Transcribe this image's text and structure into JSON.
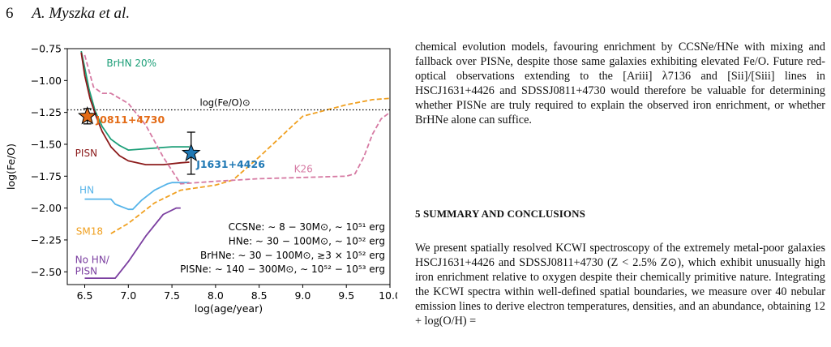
{
  "header": {
    "page_number": "6",
    "authors": "A. Myszka et al."
  },
  "figure": {
    "chart_data": {
      "type": "line",
      "xlabel": "log(age/year)",
      "ylabel": "log(Fe/O)",
      "xlim": [
        6.3,
        10.0
      ],
      "ylim": [
        -2.6,
        -0.75
      ],
      "xticks": [
        6.5,
        7.0,
        7.5,
        8.0,
        8.5,
        9.0,
        9.5,
        10.0
      ],
      "xtick_labels": [
        "6.5",
        "7.0",
        "7.5",
        "8.0",
        "8.5",
        "9.0",
        "9.5",
        "10.0"
      ],
      "yticks": [
        -0.75,
        -1.0,
        -1.25,
        -1.5,
        -1.75,
        -2.0,
        -2.25,
        -2.5
      ],
      "ytick_labels": [
        "−0.75",
        "−1.00",
        "−1.25",
        "−1.50",
        "−1.75",
        "−2.00",
        "−2.25",
        "−2.50"
      ],
      "grid": false,
      "reference_line": {
        "label": "log(Fe/O)⊙",
        "y": -1.23,
        "style": "dotted",
        "color": "#000000"
      },
      "series": [
        {
          "name": "BrHN 20%",
          "color": "#1b9e77",
          "style": "solid",
          "x": [
            6.46,
            6.5,
            6.55,
            6.62,
            6.7,
            6.8,
            6.9,
            7.0,
            7.2,
            7.4,
            7.5,
            7.7
          ],
          "y": [
            -0.77,
            -0.9,
            -1.07,
            -1.24,
            -1.36,
            -1.46,
            -1.51,
            -1.545,
            -1.535,
            -1.525,
            -1.52,
            -1.52
          ]
        },
        {
          "name": "PISN",
          "color": "#8b1a1a",
          "style": "solid",
          "x": [
            6.46,
            6.5,
            6.56,
            6.63,
            6.7,
            6.8,
            6.9,
            7.0,
            7.2,
            7.4,
            7.6,
            7.7
          ],
          "y": [
            -0.78,
            -0.96,
            -1.14,
            -1.28,
            -1.4,
            -1.52,
            -1.59,
            -1.63,
            -1.66,
            -1.66,
            -1.645,
            -1.64
          ]
        },
        {
          "name": "HN",
          "color": "#56b4e9",
          "style": "solid",
          "x": [
            6.5,
            6.8,
            6.85,
            7.0,
            7.05,
            7.15,
            7.3,
            7.45,
            7.5,
            7.7
          ],
          "y": [
            -1.93,
            -1.93,
            -1.97,
            -2.01,
            -2.01,
            -1.94,
            -1.86,
            -1.81,
            -1.8,
            -1.8
          ]
        },
        {
          "name": "SM18",
          "color": "#f0a020",
          "style": "dashed",
          "x": [
            6.8,
            7.0,
            7.3,
            7.6,
            8.0,
            8.2,
            8.5,
            9.0,
            9.5,
            9.8,
            10.0
          ],
          "y": [
            -2.2,
            -2.12,
            -1.96,
            -1.86,
            -1.82,
            -1.78,
            -1.6,
            -1.28,
            -1.19,
            -1.15,
            -1.14
          ]
        },
        {
          "name": "No HN/ PISN",
          "color": "#7b3fa0",
          "style": "solid",
          "x": [
            6.5,
            6.85,
            7.0,
            7.2,
            7.4,
            7.55,
            7.6
          ],
          "y": [
            -2.55,
            -2.55,
            -2.42,
            -2.22,
            -2.05,
            -2.0,
            -2.0
          ]
        },
        {
          "name": "K26",
          "color": "#d67aa3",
          "style": "dashed",
          "x": [
            6.5,
            6.6,
            6.7,
            6.8,
            7.0,
            7.2,
            7.4,
            7.6,
            8.0,
            8.5,
            9.0,
            9.5,
            9.6,
            9.7,
            9.8,
            9.9,
            10.0
          ],
          "y": [
            -0.8,
            -1.05,
            -1.1,
            -1.1,
            -1.18,
            -1.35,
            -1.6,
            -1.81,
            -1.79,
            -1.77,
            -1.76,
            -1.75,
            -1.73,
            -1.6,
            -1.42,
            -1.3,
            -1.25
          ]
        }
      ],
      "points": [
        {
          "name": "J0811+4730",
          "x": 6.53,
          "y": -1.28,
          "yerr": 0.06,
          "color": "#e36b16"
        },
        {
          "name": "J1631+4426",
          "x": 7.72,
          "y": -1.57,
          "yerr": 0.165,
          "color": "#1f78b4"
        }
      ],
      "annotations": [
        "CCSNe: ∼ 8 − 30M⊙, ∼ 10⁵¹ erg",
        "HNe: ∼ 30 − 100M⊙, ∼ 10⁵² erg",
        "BrHNe: ∼ 30 − 100M⊙, ≳3 × 10⁵² erg",
        "PISNe: ∼ 140 − 300M⊙, ∼ 10⁵² − 10⁵³ erg"
      ]
    }
  },
  "text": {
    "paragraph1": "chemical evolution models, favouring enrichment by CCSNe/HNe with mixing and fallback over PISNe, despite those same galaxies exhibiting elevated Fe/O. Future red-optical observations extending to the [Ariii] λ7136 and [Sii]/[Siii] lines in HSCJ1631+4426 and SDSSJ0811+4730 would therefore be valuable for determining whether PISNe are truly required to explain the observed iron enrichment, or whether BrHNe alone can suffice.",
    "section_heading": "5 SUMMARY AND CONCLUSIONS",
    "paragraph2": "We present spatially resolved KCWI spectroscopy of the extremely metal-poor galaxies HSCJ1631+4426 and SDSSJ0811+4730 (Z < 2.5% Z⊙), which exhibit unusually high iron enrichment relative to oxygen despite their chemically primitive nature. Integrating the KCWI spectra within well-defined spatial boundaries, we measure over 40 nebular emission lines to derive electron temperatures, densities, and an abundance, obtaining 12 + log(O/H) ="
  }
}
